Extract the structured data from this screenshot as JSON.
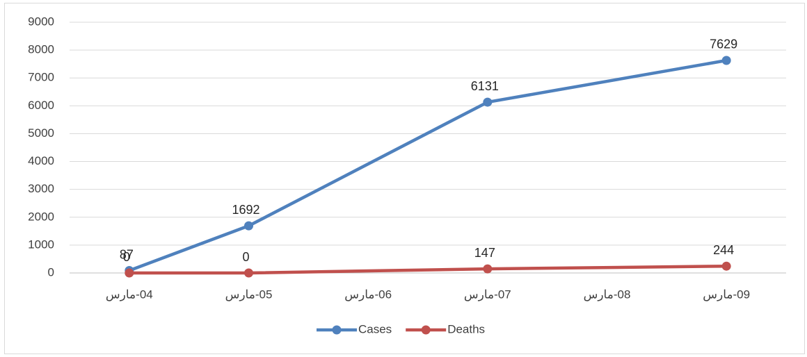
{
  "chart_data": {
    "type": "line",
    "categories": [
      "04-مارس",
      "05-مارس",
      "06-مارس",
      "07-مارس",
      "08-مارس",
      "09-مارس"
    ],
    "series": [
      {
        "name": "Cases",
        "color": "#4f81bd",
        "values": [
          87,
          1692,
          null,
          6131,
          null,
          7629
        ]
      },
      {
        "name": "Deaths",
        "color": "#c0504d",
        "values": [
          0,
          0,
          null,
          147,
          null,
          244
        ]
      }
    ],
    "ylim": [
      0,
      9000
    ],
    "yticks": [
      0,
      1000,
      2000,
      3000,
      4000,
      5000,
      6000,
      7000,
      8000,
      9000
    ],
    "grid": true,
    "connect_gaps": true,
    "data_labels": true,
    "legend": "bottom"
  }
}
